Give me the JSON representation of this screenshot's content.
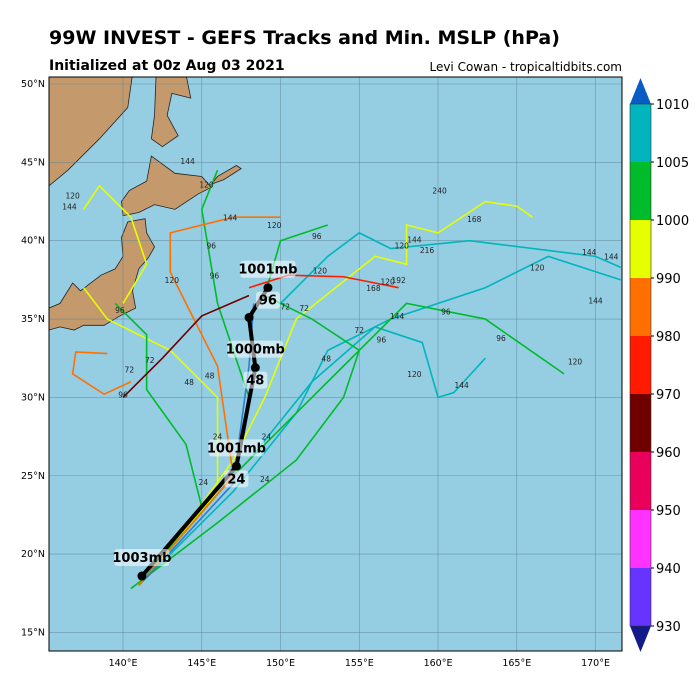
{
  "title": "99W INVEST - GEFS Tracks and Min. MSLP (hPa)",
  "subtitle": "Initialized at 00z Aug 03 2021",
  "credit": "Levi Cowan - tropicaltidbits.com",
  "colors": {
    "ocean": "#95cde2",
    "land": "#c49a6c",
    "grid": "#5a7f8f",
    "mean_track": "#000000"
  },
  "chart_data": {
    "type": "map-tracks",
    "lon_range": [
      135.3,
      171.6
    ],
    "lat_range": [
      14.9,
      50.5
    ],
    "lon_ticks": [
      "140°E",
      "145°E",
      "150°E",
      "155°E",
      "160°E",
      "165°E",
      "170°E"
    ],
    "lat_ticks": [
      "15°N",
      "20°N",
      "25°N",
      "30°N",
      "35°N",
      "40°N",
      "45°N",
      "50°N"
    ],
    "grid": true,
    "colorbar": {
      "ticks": [
        "930",
        "940",
        "950",
        "960",
        "970",
        "980",
        "990",
        "1000",
        "1005",
        "1010"
      ],
      "colors": [
        "#6633ff",
        "#ff33ff",
        "#e8005a",
        "#700000",
        "#ff1a00",
        "#ff7000",
        "#e6ff00",
        "#00bb2a",
        "#00b5bd"
      ],
      "under_color": "#121a8a",
      "over_color": "#0a5cc4"
    },
    "mean_track": [
      {
        "lon": 141.2,
        "lat": 18.6,
        "pressure_label": "1003mb",
        "hour_label": ""
      },
      {
        "lon": 147.2,
        "lat": 25.6,
        "pressure_label": "1001mb",
        "hour_label": "24"
      },
      {
        "lon": 148.4,
        "lat": 31.9,
        "pressure_label": "1000mb",
        "hour_label": "48"
      },
      {
        "lon": 148.0,
        "lat": 35.1,
        "pressure_label": "",
        "hour_label": ""
      },
      {
        "lon": 149.2,
        "lat": 37.0,
        "pressure_label": "1001mb",
        "hour_label": "96"
      }
    ],
    "members": [
      {
        "color": "#00b5bd",
        "points": [
          [
            141,
            18
          ],
          [
            147,
            24
          ],
          [
            151,
            29
          ],
          [
            153,
            33
          ],
          [
            157,
            35
          ],
          [
            163,
            37
          ],
          [
            167,
            39
          ],
          [
            171.6,
            37.5
          ]
        ]
      },
      {
        "color": "#00b5bd",
        "points": [
          [
            148,
            26
          ],
          [
            152,
            31
          ],
          [
            156,
            34.5
          ],
          [
            159,
            33.5
          ],
          [
            160,
            30
          ],
          [
            161,
            30.3
          ],
          [
            163,
            32.5
          ]
        ]
      },
      {
        "color": "#00b5bd",
        "points": [
          [
            150,
            36
          ],
          [
            153,
            39
          ],
          [
            155,
            40.5
          ],
          [
            157,
            39.5
          ],
          [
            162,
            40
          ],
          [
            170,
            39
          ],
          [
            171.6,
            38.3
          ]
        ]
      },
      {
        "color": "#e6ff00",
        "points": [
          [
            141,
            18
          ],
          [
            146,
            24
          ],
          [
            146,
            30
          ],
          [
            143,
            33
          ],
          [
            139,
            35
          ],
          [
            137.5,
            37
          ]
        ]
      },
      {
        "color": "#e6ff00",
        "points": [
          [
            142,
            19
          ],
          [
            147,
            26
          ],
          [
            149,
            30
          ],
          [
            151,
            35
          ],
          [
            156,
            39
          ],
          [
            158,
            38.5
          ],
          [
            158,
            41
          ],
          [
            160,
            40.5
          ],
          [
            163,
            42.5
          ],
          [
            165,
            42.2
          ],
          [
            166,
            41.5
          ]
        ]
      },
      {
        "color": "#e6ff00",
        "points": [
          [
            137.5,
            42
          ],
          [
            138.5,
            43.5
          ],
          [
            140.5,
            41.5
          ],
          [
            141.5,
            38.5
          ],
          [
            140,
            36
          ]
        ]
      },
      {
        "color": "#00bb2a",
        "points": [
          [
            141,
            18
          ],
          [
            147,
            25
          ],
          [
            148,
            30
          ],
          [
            146,
            36
          ],
          [
            145,
            42
          ],
          [
            146,
            44.5
          ]
        ]
      },
      {
        "color": "#00bb2a",
        "points": [
          [
            141,
            18
          ],
          [
            147,
            25
          ],
          [
            153,
            31
          ],
          [
            158,
            36
          ],
          [
            163,
            35
          ],
          [
            168,
            31.5
          ]
        ]
      },
      {
        "color": "#00bb2a",
        "points": [
          [
            140.5,
            17.8
          ],
          [
            146,
            22
          ],
          [
            151,
            26
          ],
          [
            154,
            30
          ],
          [
            155,
            33
          ],
          [
            152,
            35
          ],
          [
            149,
            36.5
          ],
          [
            150,
            40
          ],
          [
            153,
            41
          ]
        ]
      },
      {
        "color": "#00bb2a",
        "points": [
          [
            141,
            18
          ],
          [
            145,
            23
          ],
          [
            144,
            27
          ],
          [
            141.5,
            30.5
          ],
          [
            141.5,
            34
          ],
          [
            139.5,
            36
          ]
        ]
      },
      {
        "color": "#ff7000",
        "points": [
          [
            141,
            18
          ],
          [
            147,
            25
          ],
          [
            146,
            32
          ],
          [
            143,
            38
          ],
          [
            143,
            40.5
          ],
          [
            147,
            41.5
          ],
          [
            150,
            41.5
          ]
        ]
      },
      {
        "color": "#ff7000",
        "points": [
          [
            140.5,
            31
          ],
          [
            138.8,
            30.2
          ],
          [
            136.8,
            31.5
          ],
          [
            137,
            32.9
          ],
          [
            139,
            32.8
          ]
        ]
      },
      {
        "color": "#700000",
        "points": [
          [
            148,
            36.5
          ],
          [
            145,
            35.2
          ],
          [
            142.5,
            32.5
          ],
          [
            140,
            30
          ]
        ]
      },
      {
        "color": "#ff1a00",
        "points": [
          [
            148,
            37
          ],
          [
            150.5,
            37.8
          ],
          [
            154,
            37.7
          ],
          [
            156,
            37.3
          ],
          [
            157.5,
            37
          ]
        ]
      },
      {
        "color": "#2a7fd0",
        "points": [
          [
            141.5,
            18.5
          ],
          [
            147,
            24.5
          ],
          [
            148,
            32
          ],
          [
            148.3,
            36
          ]
        ]
      }
    ],
    "hour_labels": [
      {
        "lon": 136.8,
        "lat": 42.7,
        "text": "120"
      },
      {
        "lon": 136.6,
        "lat": 42.0,
        "text": "144"
      },
      {
        "lon": 144.1,
        "lat": 44.9,
        "text": "144"
      },
      {
        "lon": 145.3,
        "lat": 43.4,
        "text": "120"
      },
      {
        "lon": 146.8,
        "lat": 41.3,
        "text": "144"
      },
      {
        "lon": 149.6,
        "lat": 40.8,
        "text": "120"
      },
      {
        "lon": 152.3,
        "lat": 40.1,
        "text": "96"
      },
      {
        "lon": 160.1,
        "lat": 43.0,
        "text": "240"
      },
      {
        "lon": 162.3,
        "lat": 41.2,
        "text": "168"
      },
      {
        "lon": 159.3,
        "lat": 39.2,
        "text": "216"
      },
      {
        "lon": 158.5,
        "lat": 39.9,
        "text": "144"
      },
      {
        "lon": 157.7,
        "lat": 39.5,
        "text": "120"
      },
      {
        "lon": 157.5,
        "lat": 37.3,
        "text": "192"
      },
      {
        "lon": 156.8,
        "lat": 37.2,
        "text": "120"
      },
      {
        "lon": 155.9,
        "lat": 36.8,
        "text": "168"
      },
      {
        "lon": 152.5,
        "lat": 37.9,
        "text": "120"
      },
      {
        "lon": 169.6,
        "lat": 39.1,
        "text": "144"
      },
      {
        "lon": 171,
        "lat": 38.8,
        "text": "144"
      },
      {
        "lon": 166.3,
        "lat": 38.1,
        "text": "120"
      },
      {
        "lon": 170,
        "lat": 36.0,
        "text": "144"
      },
      {
        "lon": 160.5,
        "lat": 35.3,
        "text": "96"
      },
      {
        "lon": 164,
        "lat": 33.6,
        "text": "96"
      },
      {
        "lon": 157.4,
        "lat": 35,
        "text": "144"
      },
      {
        "lon": 156.4,
        "lat": 33.5,
        "text": "96"
      },
      {
        "lon": 168.7,
        "lat": 32.1,
        "text": "120"
      },
      {
        "lon": 161.5,
        "lat": 30.6,
        "text": "144"
      },
      {
        "lon": 158.5,
        "lat": 31.3,
        "text": "120"
      },
      {
        "lon": 140,
        "lat": 30,
        "text": "96"
      },
      {
        "lon": 139.8,
        "lat": 35.4,
        "text": "96"
      },
      {
        "lon": 143.1,
        "lat": 37.3,
        "text": "120"
      },
      {
        "lon": 145.8,
        "lat": 37.6,
        "text": "96"
      },
      {
        "lon": 145.6,
        "lat": 39.5,
        "text": "96"
      },
      {
        "lon": 141.7,
        "lat": 32.2,
        "text": "72"
      },
      {
        "lon": 140.4,
        "lat": 31.6,
        "text": "72"
      },
      {
        "lon": 144.2,
        "lat": 30.8,
        "text": "48"
      },
      {
        "lon": 145.5,
        "lat": 31.2,
        "text": "48"
      },
      {
        "lon": 152.9,
        "lat": 32.3,
        "text": "48"
      },
      {
        "lon": 150.3,
        "lat": 35.6,
        "text": "72"
      },
      {
        "lon": 151.5,
        "lat": 35.5,
        "text": "72"
      },
      {
        "lon": 155.0,
        "lat": 34.1,
        "text": "72"
      },
      {
        "lon": 146,
        "lat": 27.3,
        "text": "24"
      },
      {
        "lon": 149.1,
        "lat": 27.3,
        "text": "24"
      },
      {
        "lon": 145.1,
        "lat": 24.4,
        "text": "24"
      },
      {
        "lon": 149,
        "lat": 24.6,
        "text": "24"
      }
    ]
  }
}
